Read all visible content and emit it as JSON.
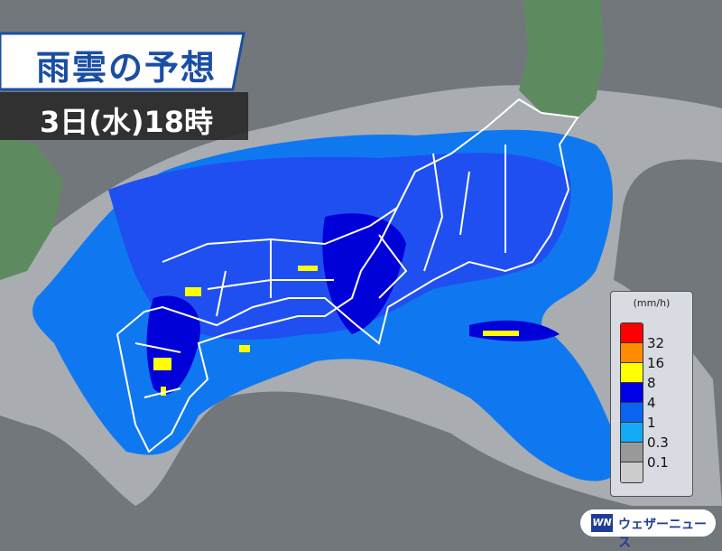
{
  "header": {
    "title": "雨雲の予想",
    "datetime": "3日(水)18時"
  },
  "legend": {
    "unit": "(mm/h)",
    "levels": [
      {
        "label": "32",
        "color": "#ff0000"
      },
      {
        "label": "16",
        "color": "#ff8c00"
      },
      {
        "label": "8",
        "color": "#ffff00"
      },
      {
        "label": "4",
        "color": "#0000e6"
      },
      {
        "label": "1",
        "color": "#0a64f0"
      },
      {
        "label": "0.3",
        "color": "#14aaf5"
      },
      {
        "label": "0.1",
        "color": "#999999"
      },
      {
        "label": "",
        "color": "#cccccc"
      }
    ]
  },
  "brand": {
    "logo_text": "WN",
    "name": "ウェザーニュース"
  },
  "colors": {
    "sea": "#72777c",
    "land": "#5e8a5f",
    "border": "#ffffff"
  }
}
